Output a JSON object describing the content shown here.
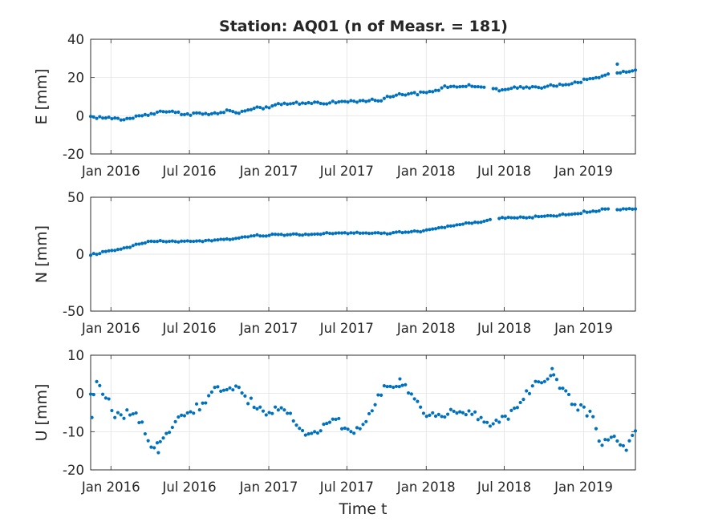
{
  "title": "Station: AQ01 (n of Measr. = 181)",
  "chart_data": [
    {
      "type": "scatter",
      "ylabel": "E [mm]",
      "xlabel": "",
      "x_range": [
        "2015-11-15",
        "2019-05-01"
      ],
      "ylim": [
        -20,
        40
      ],
      "yticks": [
        -20,
        0,
        20,
        40
      ],
      "xticks": [
        "2016-01-01",
        "2016-07-01",
        "2017-01-01",
        "2017-07-01",
        "2018-01-01",
        "2018-07-01",
        "2019-01-01"
      ],
      "xtick_labels": [
        "Jan 2016",
        "Jul 2016",
        "Jan 2017",
        "Jul 2017",
        "Jan 2018",
        "Jul 2018",
        "Jan 2019"
      ],
      "grid": true,
      "marker_color": "#0072BD",
      "keyframes": [
        [
          "2015-11-15",
          -0.5
        ],
        [
          "2016-01-10",
          -1.5
        ],
        [
          "2016-02-01",
          -2.0
        ],
        [
          "2016-03-15",
          0.2
        ],
        [
          "2016-05-01",
          2.5
        ],
        [
          "2016-06-15",
          1.0
        ],
        [
          "2016-07-20",
          1.3
        ],
        [
          "2016-08-15",
          0.6
        ],
        [
          "2016-10-01",
          2.5
        ],
        [
          "2016-10-20",
          1.5
        ],
        [
          "2016-11-20",
          3.0
        ],
        [
          "2017-01-05",
          5.0
        ],
        [
          "2017-03-01",
          6.5
        ],
        [
          "2017-06-01",
          7.0
        ],
        [
          "2017-09-01",
          8.0
        ],
        [
          "2017-11-01",
          11.0
        ],
        [
          "2018-01-15",
          13.0
        ],
        [
          "2018-03-01",
          15.5
        ],
        [
          "2018-05-15",
          15.0
        ],
        [
          "2018-06-01",
          15.2
        ],
        [
          "2018-06-20",
          13.0
        ],
        [
          "2018-08-01",
          14.5
        ],
        [
          "2018-10-15",
          15.5
        ],
        [
          "2018-12-15",
          17.5
        ],
        [
          "2019-02-15",
          20.5
        ],
        [
          "2019-03-01",
          22.0
        ],
        [
          "2019-05-01",
          23.5
        ]
      ],
      "extra_points": [
        [
          "2019-03-20",
          27.0
        ]
      ],
      "noise": 0.8,
      "gaps": [
        [
          "2018-05-20",
          "2018-06-05"
        ],
        [
          "2019-03-05",
          "2019-03-18"
        ]
      ]
    },
    {
      "type": "scatter",
      "ylabel": "N [mm]",
      "xlabel": "",
      "x_range": [
        "2015-11-15",
        "2019-05-01"
      ],
      "ylim": [
        -50,
        50
      ],
      "yticks": [
        -50,
        0,
        50
      ],
      "xticks": [
        "2016-01-01",
        "2016-07-01",
        "2017-01-01",
        "2017-07-01",
        "2018-01-01",
        "2018-07-01",
        "2019-01-01"
      ],
      "xtick_labels": [
        "Jan 2016",
        "Jul 2016",
        "Jan 2017",
        "Jul 2017",
        "Jan 2018",
        "Jul 2018",
        "Jan 2019"
      ],
      "grid": true,
      "marker_color": "#0072BD",
      "keyframes": [
        [
          "2015-11-15",
          -0.5
        ],
        [
          "2016-02-01",
          5.0
        ],
        [
          "2016-04-01",
          11.5
        ],
        [
          "2016-06-01",
          11.0
        ],
        [
          "2016-09-01",
          12.0
        ],
        [
          "2016-11-15",
          15.5
        ],
        [
          "2017-01-15",
          17.0
        ],
        [
          "2017-04-01",
          17.5
        ],
        [
          "2017-07-01",
          18.5
        ],
        [
          "2017-10-01",
          18.5
        ],
        [
          "2017-12-15",
          20.0
        ],
        [
          "2018-03-01",
          25.0
        ],
        [
          "2018-05-20",
          29.0
        ],
        [
          "2018-06-20",
          31.5
        ],
        [
          "2018-09-01",
          32.5
        ],
        [
          "2018-12-01",
          35.0
        ],
        [
          "2019-02-15",
          39.0
        ],
        [
          "2019-05-01",
          40.0
        ]
      ],
      "extra_points": [],
      "noise": 0.8,
      "gaps": [
        [
          "2018-06-03",
          "2018-06-15"
        ],
        [
          "2019-03-05",
          "2019-03-18"
        ]
      ]
    },
    {
      "type": "scatter",
      "ylabel": "U [mm]",
      "xlabel": "Time t",
      "x_range": [
        "2015-11-15",
        "2019-05-01"
      ],
      "ylim": [
        -20,
        10
      ],
      "yticks": [
        -20,
        -10,
        0,
        10
      ],
      "xticks": [
        "2016-01-01",
        "2016-07-01",
        "2017-01-01",
        "2017-07-01",
        "2018-01-01",
        "2018-07-01",
        "2019-01-01"
      ],
      "xtick_labels": [
        "Jan 2016",
        "Jul 2016",
        "Jan 2017",
        "Jul 2017",
        "Jan 2018",
        "Jul 2018",
        "Jan 2019"
      ],
      "grid": true,
      "marker_color": "#0072BD",
      "keyframes": [
        [
          "2015-11-15",
          -1.0
        ],
        [
          "2015-12-01",
          2.0
        ],
        [
          "2015-12-20",
          0.0
        ],
        [
          "2016-01-10",
          -6.5
        ],
        [
          "2016-02-20",
          -5.5
        ],
        [
          "2016-03-15",
          -9.0
        ],
        [
          "2016-04-01",
          -14.0
        ],
        [
          "2016-05-01",
          -11.0
        ],
        [
          "2016-06-01",
          -7.0
        ],
        [
          "2016-07-15",
          -4.0
        ],
        [
          "2016-09-01",
          1.0
        ],
        [
          "2016-10-15",
          1.5
        ],
        [
          "2016-12-01",
          -3.0
        ],
        [
          "2017-01-01",
          -5.5
        ],
        [
          "2017-02-01",
          -3.0
        ],
        [
          "2017-03-15",
          -10.0
        ],
        [
          "2017-04-15",
          -10.5
        ],
        [
          "2017-06-01",
          -6.5
        ],
        [
          "2017-07-15",
          -10.5
        ],
        [
          "2017-08-15",
          -7.0
        ],
        [
          "2017-10-01",
          2.5
        ],
        [
          "2017-11-15",
          1.5
        ],
        [
          "2018-01-01",
          -6.0
        ],
        [
          "2018-03-15",
          -5.0
        ],
        [
          "2018-05-01",
          -6.0
        ],
        [
          "2018-06-01",
          -8.0
        ],
        [
          "2018-07-01",
          -6.0
        ],
        [
          "2018-08-01",
          -4.0
        ],
        [
          "2018-09-01",
          1.0
        ],
        [
          "2018-10-15",
          5.0
        ],
        [
          "2018-11-15",
          1.5
        ],
        [
          "2018-12-15",
          -4.0
        ],
        [
          "2019-01-20",
          -5.0
        ],
        [
          "2019-02-10",
          -13.0
        ],
        [
          "2019-03-15",
          -11.0
        ],
        [
          "2019-04-05",
          -15.0
        ],
        [
          "2019-05-01",
          -10.0
        ]
      ],
      "extra_points": [
        [
          "2015-11-18",
          -6.3
        ],
        [
          "2016-04-20",
          -15.5
        ],
        [
          "2017-11-01",
          3.8
        ],
        [
          "2018-10-20",
          6.5
        ]
      ],
      "noise": 1.2,
      "gaps": []
    }
  ]
}
